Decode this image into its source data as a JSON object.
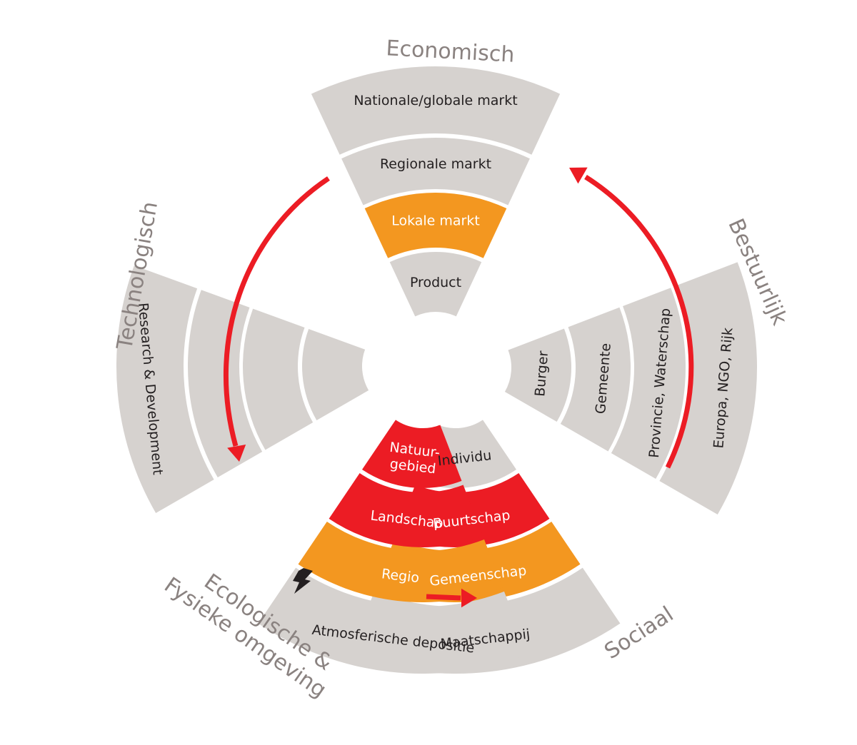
{
  "categories": {
    "economisch": "Economisch",
    "bestuurlijk": "Bestuurlijk",
    "technologisch": "Technologisch",
    "ecologisch_line1": "Ecologische &",
    "ecologisch_line2": "Fysieke omgeving",
    "sociaal": "Sociaal"
  },
  "economisch": {
    "ring1": "Product",
    "ring2": "Lokale markt",
    "ring3": "Regionale markt",
    "ring4": "Nationale/globale markt"
  },
  "bestuurlijk": {
    "ring1": "Burger",
    "ring2": "Gemeente",
    "ring3": "Provincie, Waterschap",
    "ring4": "Europa, NGO, Rijk"
  },
  "technologisch": {
    "ring4": "Research & Development"
  },
  "ecologisch": {
    "ring1_line1": "Natuur-",
    "ring1_line2": "gebied",
    "ring2": "Landschap",
    "ring3": "Regio",
    "ring4": "Atmosferische depositie"
  },
  "sociaal": {
    "ring1": "Individu",
    "ring2": "Buurtschap",
    "ring3": "Gemeenschap",
    "ring4": "Maatschappij"
  },
  "colors": {
    "gray": "#d6d2cf",
    "orange": "#f39720",
    "red": "#ec1c24",
    "category_text": "#8a8280"
  },
  "icons": {
    "lightning": "lightning-icon"
  }
}
